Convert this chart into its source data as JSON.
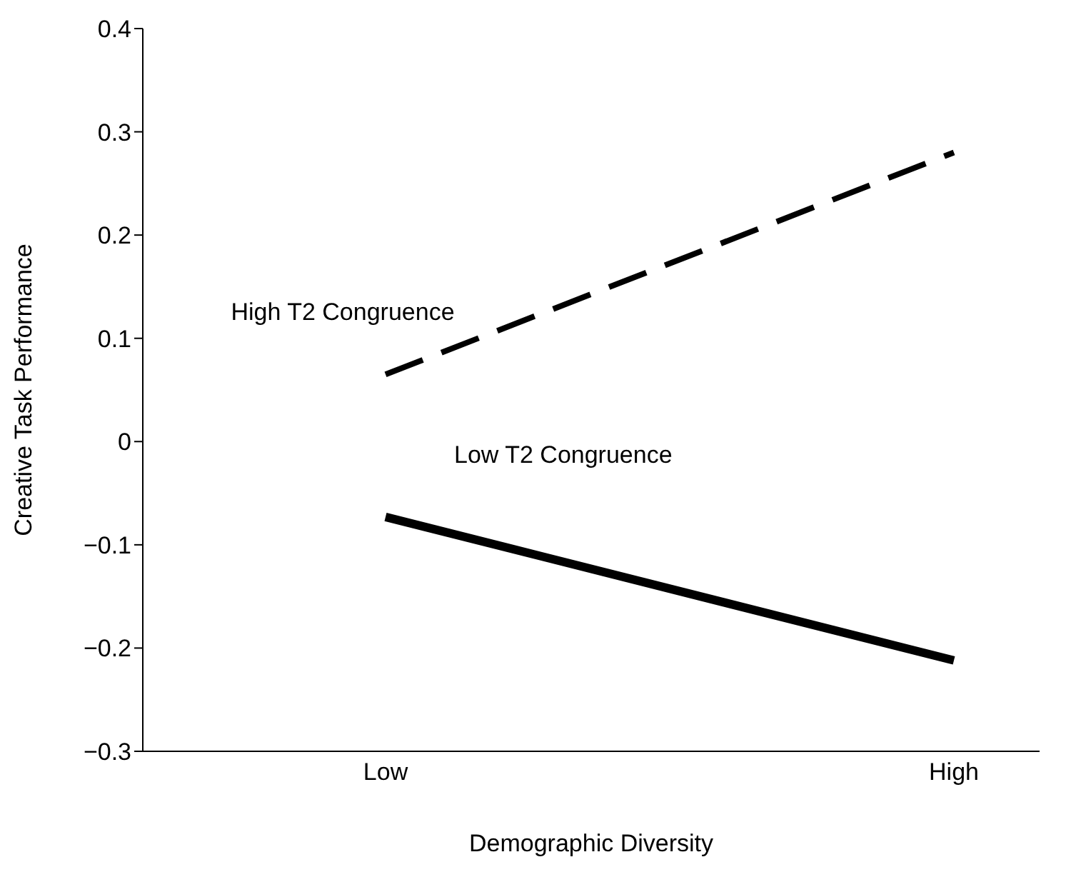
{
  "chart_data": {
    "type": "line",
    "xlabel": "Demographic Diversity",
    "ylabel": "Creative Task Performance",
    "categories": [
      "Low",
      "High"
    ],
    "series": [
      {
        "name": "High T2 Congruence",
        "color": "#000000",
        "line_style": "dashed",
        "values": [
          0.065,
          0.28
        ]
      },
      {
        "name": "Low T2 Congruence",
        "color": "#000000",
        "line_style": "solid",
        "values": [
          -0.073,
          -0.212
        ]
      }
    ],
    "ylim": [
      -0.3,
      0.4
    ],
    "yticks": [
      {
        "value": -0.3,
        "label": "−0.3"
      },
      {
        "value": -0.2,
        "label": "−0.2"
      },
      {
        "value": -0.1,
        "label": "−0.1"
      },
      0,
      0.1,
      0.2,
      0.3,
      0.4
    ],
    "grid": false,
    "legend": false,
    "marker": "none"
  }
}
